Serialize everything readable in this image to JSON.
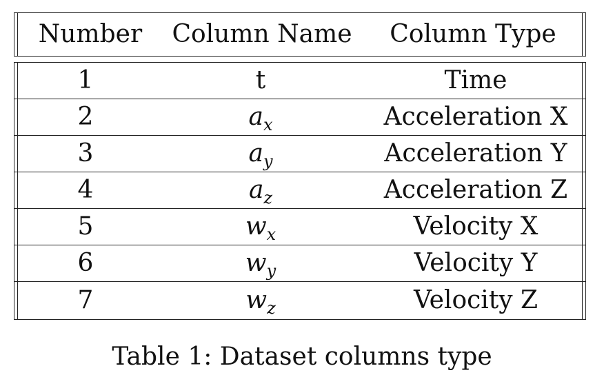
{
  "table": {
    "headers": [
      "Number",
      "Column Name",
      "Column Type"
    ],
    "rows": [
      {
        "number": "1",
        "name_base": "t",
        "name_sub": "",
        "type": "Time"
      },
      {
        "number": "2",
        "name_base": "a",
        "name_sub": "x",
        "type": "Acceleration X"
      },
      {
        "number": "3",
        "name_base": "a",
        "name_sub": "y",
        "type": "Acceleration Y"
      },
      {
        "number": "4",
        "name_base": "a",
        "name_sub": "z",
        "type": "Acceleration Z"
      },
      {
        "number": "5",
        "name_base": "w",
        "name_sub": "x",
        "type": "Velocity X"
      },
      {
        "number": "6",
        "name_base": "w",
        "name_sub": "y",
        "type": "Velocity Y"
      },
      {
        "number": "7",
        "name_base": "w",
        "name_sub": "z",
        "type": "Velocity Z"
      }
    ]
  },
  "caption": "Table 1: Dataset columns type"
}
